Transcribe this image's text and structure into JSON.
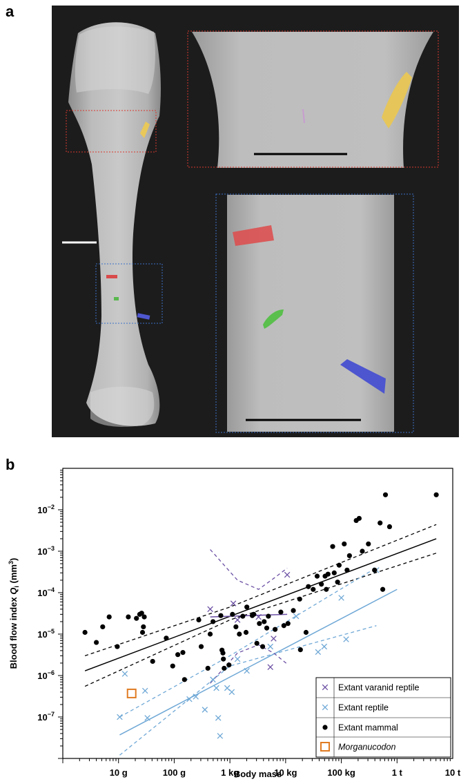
{
  "panel_a": {
    "label": "a"
  },
  "panel_b": {
    "label": "b"
  },
  "chart_data": {
    "type": "scatter",
    "title": "",
    "xlabel": "Body mass",
    "ylabel_main": "Blood flow index ",
    "ylabel_q": "Q",
    "ylabel_sub": "i",
    "ylabel_units": " (mm",
    "ylabel_exp": "3",
    "ylabel_close": ")",
    "x_scale": "log",
    "y_scale": "log",
    "xlim_g": [
      1,
      10000000
    ],
    "ylim": [
      1e-08,
      0.1
    ],
    "grid": false,
    "legend_placement": "bottom-right",
    "x_tick_values_g": [
      10,
      100,
      1000,
      10000,
      100000,
      1000000,
      10000000
    ],
    "x_tick_labels": [
      "10 g",
      "100 g",
      "1 kg",
      "10 kg",
      "100 kg",
      "1 t",
      "10 t"
    ],
    "y_tick_values": [
      1e-07,
      1e-06,
      1e-05,
      0.0001,
      0.001,
      0.01
    ],
    "y_tick_labels": [
      {
        "base": "10",
        "exp": "−7"
      },
      {
        "base": "10",
        "exp": "−6"
      },
      {
        "base": "10",
        "exp": "−5"
      },
      {
        "base": "10",
        "exp": "−4"
      },
      {
        "base": "10",
        "exp": "−3"
      },
      {
        "base": "10",
        "exp": "−2"
      }
    ],
    "colors": {
      "mammal": "#000000",
      "reptile": "#6fa8d6",
      "varanid": "#6a4fa3",
      "morganucodon": "#e07b22"
    },
    "series": [
      {
        "name": "Extant varanid reptile",
        "marker": "x",
        "points": [
          [
            443,
            4e-05
          ],
          [
            1151,
            5.5e-05
          ],
          [
            1367,
            2.2e-05
          ],
          [
            3268,
            2.6e-05
          ],
          [
            6085,
            7.8e-06
          ],
          [
            5319,
            1.6e-06
          ],
          [
            10667,
            0.00027
          ]
        ]
      },
      {
        "name": "Extant reptile",
        "marker": "x",
        "points": [
          [
            10.5,
            1e-07
          ],
          [
            13,
            1.1e-06
          ],
          [
            30,
            4.3e-07
          ],
          [
            33,
            9.5e-08
          ],
          [
            187,
            2.7e-07
          ],
          [
            244,
            3.1e-07
          ],
          [
            355,
            1.5e-07
          ],
          [
            495,
            8e-07
          ],
          [
            571,
            5e-07
          ],
          [
            617,
            9.5e-08
          ],
          [
            665,
            3.5e-08
          ],
          [
            893,
            5e-07
          ],
          [
            1080,
            4e-07
          ],
          [
            1367,
            2.5e-06
          ],
          [
            2012,
            1.3e-06
          ],
          [
            5319,
            5e-06
          ],
          [
            15460,
            2.7e-05
          ],
          [
            38217,
            3.7e-06
          ],
          [
            49320,
            5e-06
          ],
          [
            100000,
            7.5e-05
          ],
          [
            122000,
            7.5e-06
          ],
          [
            426000,
            0.00035
          ]
        ]
      },
      {
        "name": "Extant mammal",
        "marker": "dot",
        "points": [
          [
            2.5,
            1.1e-05
          ],
          [
            4.0,
            6.3e-06
          ],
          [
            5.2,
            1.5e-05
          ],
          [
            6.8,
            2.6e-05
          ],
          [
            9.5,
            5e-06
          ],
          [
            15,
            2.6e-05
          ],
          [
            21,
            2.4e-05
          ],
          [
            24,
            3e-05
          ],
          [
            26,
            3.2e-05
          ],
          [
            29,
            2.6e-05
          ],
          [
            28,
            1.5e-05
          ],
          [
            27,
            1.1e-05
          ],
          [
            41,
            2.2e-06
          ],
          [
            72,
            8e-06
          ],
          [
            94,
            1.7e-06
          ],
          [
            116,
            3.2e-06
          ],
          [
            143,
            3.6e-06
          ],
          [
            153,
            8e-07
          ],
          [
            276,
            2.2e-05
          ],
          [
            305,
            5e-06
          ],
          [
            402,
            1.5e-06
          ],
          [
            442,
            1e-05
          ],
          [
            497,
            2e-05
          ],
          [
            686,
            2.8e-05
          ],
          [
            720,
            4.1e-06
          ],
          [
            749,
            3.5e-06
          ],
          [
            763,
            2.5e-06
          ],
          [
            788,
            1.5e-06
          ],
          [
            961,
            1.8e-06
          ],
          [
            1110,
            3e-05
          ],
          [
            1282,
            1.5e-05
          ],
          [
            1477,
            1e-05
          ],
          [
            1702,
            2.7e-05
          ],
          [
            1947,
            1.1e-05
          ],
          [
            2012,
            4.5e-05
          ],
          [
            2519,
            2.8e-05
          ],
          [
            2683,
            3e-05
          ],
          [
            3044,
            6e-06
          ],
          [
            3381,
            1.8e-05
          ],
          [
            3869,
            5e-06
          ],
          [
            4121,
            2e-05
          ],
          [
            4584,
            1.4e-05
          ],
          [
            4901,
            2.7e-05
          ],
          [
            6470,
            1.3e-05
          ],
          [
            8200,
            3.4e-05
          ],
          [
            9300,
            1.6e-05
          ],
          [
            11020,
            1.8e-05
          ],
          [
            13760,
            3.7e-05
          ],
          [
            17890,
            7e-05
          ],
          [
            18430,
            4.2e-06
          ],
          [
            23250,
            1.1e-05
          ],
          [
            25620,
            0.00014
          ],
          [
            31240,
            0.00012
          ],
          [
            36800,
            0.00025
          ],
          [
            43850,
            0.00016
          ],
          [
            51100,
            0.00025
          ],
          [
            53700,
            0.00012
          ],
          [
            57700,
            0.00028
          ],
          [
            69930,
            0.0013
          ],
          [
            74560,
            0.0003
          ],
          [
            85620,
            0.00018
          ],
          [
            91380,
            0.00046
          ],
          [
            112700,
            0.0015
          ],
          [
            126800,
            0.00035
          ],
          [
            140000,
            0.00078
          ],
          [
            185000,
            0.0055
          ],
          [
            209000,
            0.0062
          ],
          [
            238000,
            0.001
          ],
          [
            306000,
            0.0015
          ],
          [
            395000,
            0.00035
          ],
          [
            496000,
            0.0048
          ],
          [
            554000,
            0.00012
          ],
          [
            620000,
            0.023
          ],
          [
            734000,
            0.0039
          ],
          [
            5060000,
            0.023
          ]
        ]
      },
      {
        "name": "Morganucodon",
        "marker": "square",
        "points": [
          [
            17.2,
            3.7e-07
          ]
        ]
      }
    ],
    "regressions": [
      {
        "series": "Extant mammal",
        "x": [
          2.5,
          5060000
        ],
        "y": [
          1.3e-06,
          0.002
        ],
        "ci_upper": [
          [
            2.5,
            3e-06
          ],
          [
            1000,
            4.5e-05
          ],
          [
            5060000,
            0.0044
          ]
        ],
        "ci_lower": [
          [
            2.5,
            5.5e-07
          ],
          [
            1000,
            2.2e-05
          ],
          [
            5060000,
            0.0009
          ]
        ]
      },
      {
        "series": "Extant reptile",
        "x": [
          10.5,
          1000000
        ],
        "y": [
          3.7e-08,
          0.00012
        ],
        "ci_upper": [
          [
            10.5,
            1e-07
          ],
          [
            1000,
            3e-06
          ],
          [
            426000,
            0.0004
          ]
        ],
        "ci_lower": [
          [
            10.5,
            1.2e-08
          ],
          [
            1000,
            1.7e-06
          ],
          [
            426000,
            1.6e-05
          ]
        ]
      },
      {
        "series": "Extant varanid reptile",
        "x": [
          443,
          10667
        ],
        "y": [
          2.6e-05,
          3e-05
        ],
        "ci_upper": [
          [
            443,
            0.0011
          ],
          [
            1367,
            0.0002
          ],
          [
            3268,
            0.00012
          ],
          [
            6085,
            0.00022
          ],
          [
            10667,
            0.00039
          ]
        ],
        "ci_lower": [
          [
            443,
            6.5e-07
          ],
          [
            1367,
            3.5e-06
          ],
          [
            3268,
            5.5e-06
          ],
          [
            6085,
            3.5e-06
          ],
          [
            10667,
            1.9e-06
          ]
        ]
      }
    ],
    "legend": [
      {
        "label": "Extant varanid reptile",
        "italic": false
      },
      {
        "label": "Extant reptile",
        "italic": false
      },
      {
        "label": "Extant mammal",
        "italic": false
      },
      {
        "label": "Morganucodon",
        "italic": true
      }
    ]
  }
}
